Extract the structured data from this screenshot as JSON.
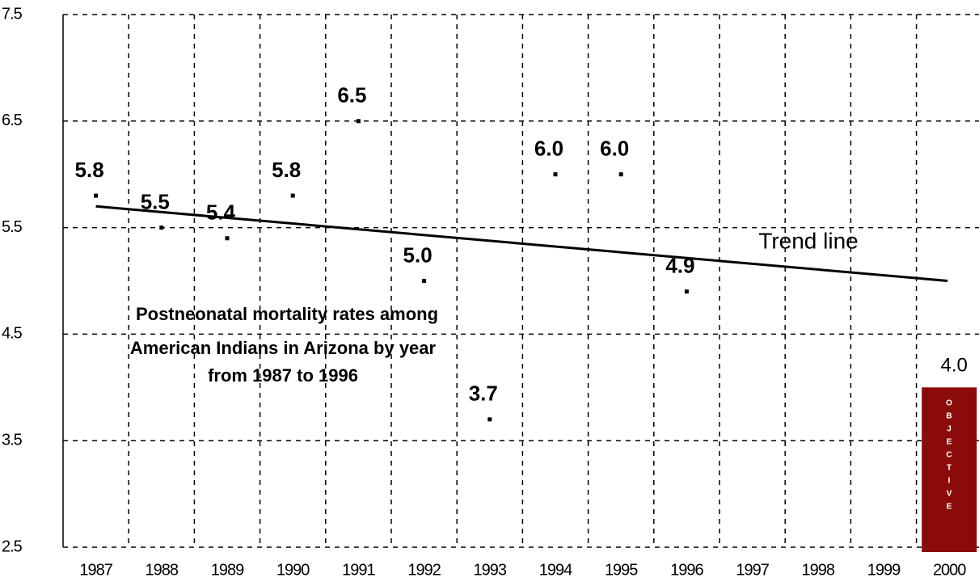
{
  "chart_data": {
    "type": "scatter",
    "categories": [
      "1987",
      "1988",
      "1989",
      "1990",
      "1991",
      "1992",
      "1993",
      "1994",
      "1995",
      "1996",
      "1997",
      "1998",
      "1999",
      "2000"
    ],
    "values": [
      5.8,
      5.5,
      5.4,
      5.8,
      6.5,
      5.0,
      3.7,
      6.0,
      6.0,
      4.9,
      null,
      null,
      null,
      null
    ],
    "value_labels": [
      "5.8",
      "5.5",
      "5.4",
      "5.8",
      "6.5",
      "5.0",
      "3.7",
      "6.0",
      "6.0",
      "4.9",
      null,
      null,
      null,
      null
    ],
    "color": "#000000",
    "ylim": [
      2.5,
      7.5
    ],
    "yticks": [
      2.5,
      3.5,
      4.5,
      5.5,
      6.5,
      7.5
    ],
    "grid": true,
    "trend": {
      "label": "Trend line",
      "start": 5.7,
      "end": 5.0
    },
    "objective": {
      "label": "OBJECTIVE",
      "value": 4.0,
      "value_label": "4.0",
      "color": "#8b0a0a"
    },
    "annotation": [
      "Postneonatal mortality rates among",
      "American Indians in Arizona by year",
      "from 1987 to 1996"
    ]
  }
}
